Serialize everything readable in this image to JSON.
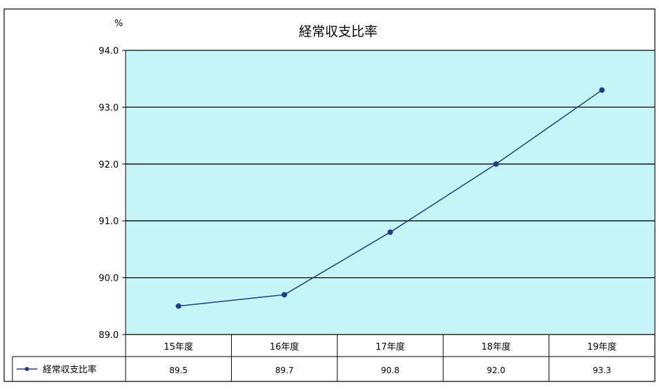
{
  "chart_data": {
    "type": "line",
    "title": "経常収支比率",
    "ylabel": "%",
    "xlabel": "",
    "categories": [
      "15年度",
      "16年度",
      "17年度",
      "18年度",
      "19年度"
    ],
    "series": [
      {
        "name": "経常収支比率",
        "values": [
          89.5,
          89.7,
          90.8,
          92.0,
          93.3
        ]
      }
    ],
    "value_labels": [
      "89.5",
      "89.7",
      "90.8",
      "92.0",
      "93.3"
    ],
    "ylim": [
      89.0,
      94.0
    ],
    "yticks": [
      89.0,
      90.0,
      91.0,
      92.0,
      93.0,
      94.0
    ],
    "ytick_labels": [
      "89.0",
      "90.0",
      "91.0",
      "92.0",
      "93.0",
      "94.0"
    ],
    "grid": true,
    "legend": "data-table-left",
    "colors": {
      "plot_background": "#c6f5f7",
      "series_line": "#1f3a8a",
      "gridline": "#000000"
    }
  }
}
